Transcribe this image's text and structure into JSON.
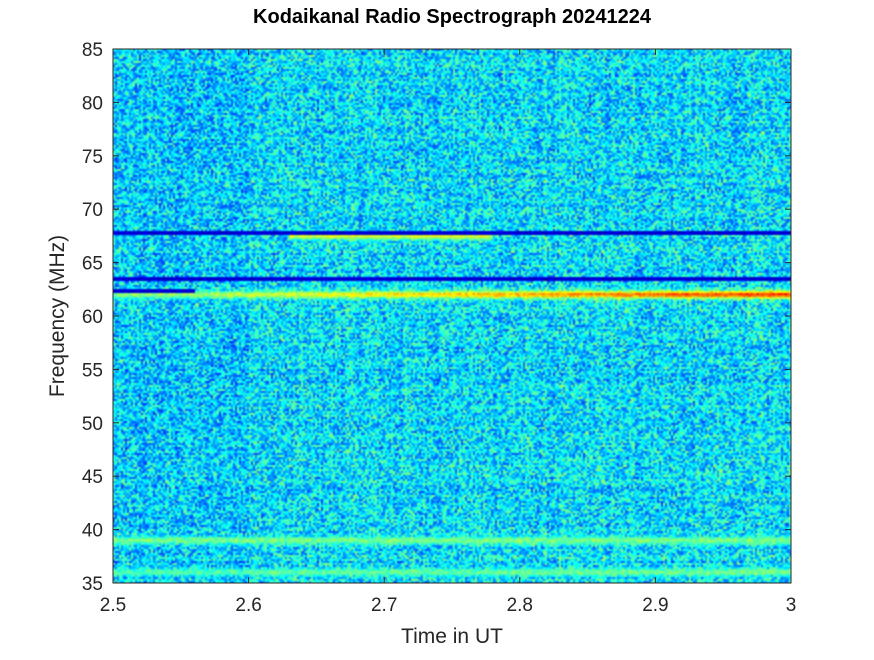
{
  "chart_data": {
    "type": "heatmap",
    "title": "Kodaikanal Radio Spectrograph  20241224",
    "xlabel": "Time in UT",
    "ylabel": "Frequency (MHz)",
    "xlim": [
      2.5,
      3.0
    ],
    "ylim": [
      35,
      85
    ],
    "x_ticks": [
      2.5,
      2.6,
      2.7,
      2.8,
      2.9,
      3.0
    ],
    "x_tick_labels": [
      "2.5",
      "2.6",
      "2.7",
      "2.8",
      "2.9",
      "3"
    ],
    "y_ticks": [
      35,
      40,
      45,
      50,
      55,
      60,
      65,
      70,
      75,
      80,
      85
    ],
    "y_tick_labels": [
      "35",
      "40",
      "45",
      "50",
      "55",
      "60",
      "65",
      "70",
      "75",
      "80",
      "85"
    ],
    "colormap": "jet",
    "background_level": 0.33,
    "features": [
      {
        "kind": "emission_band",
        "freq_mhz": 62.0,
        "t_start": 2.5,
        "t_end": 3.0,
        "intensity_start": 0.5,
        "intensity_end": 0.85
      },
      {
        "kind": "emission_band",
        "freq_mhz": 67.5,
        "t_start": 2.63,
        "t_end": 2.78,
        "intensity_start": 0.6,
        "intensity_end": 0.6
      },
      {
        "kind": "emission_band",
        "freq_mhz": 39.0,
        "t_start": 2.5,
        "t_end": 3.0,
        "intensity_start": 0.5,
        "intensity_end": 0.5
      },
      {
        "kind": "emission_band",
        "freq_mhz": 36.0,
        "t_start": 2.5,
        "t_end": 3.0,
        "intensity_start": 0.45,
        "intensity_end": 0.5
      },
      {
        "kind": "absorption_line",
        "freq_mhz": 67.8,
        "t_start": 2.5,
        "t_end": 3.0
      },
      {
        "kind": "absorption_line",
        "freq_mhz": 63.5,
        "t_start": 2.5,
        "t_end": 3.0
      },
      {
        "kind": "absorption_line",
        "freq_mhz": 62.4,
        "t_start": 2.5,
        "t_end": 2.56
      }
    ]
  }
}
